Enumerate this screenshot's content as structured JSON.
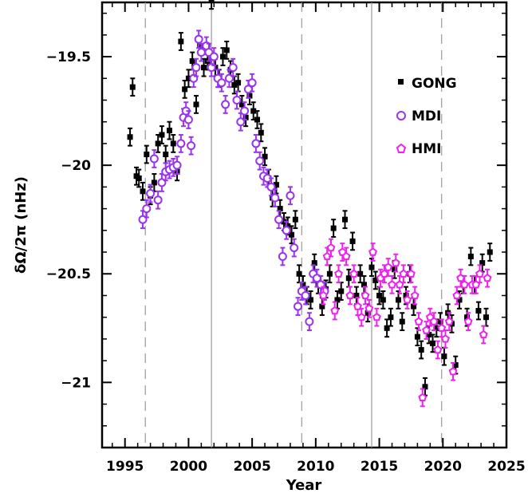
{
  "chart_data": {
    "type": "scatter",
    "xlabel": "Year",
    "ylabel": "δΩ/2π (nHz)",
    "xlim": [
      1993.2,
      2025
    ],
    "ylim": [
      -21.3,
      -19.25
    ],
    "x_ticks": [
      1995,
      2000,
      2005,
      2010,
      2015,
      2020,
      2025
    ],
    "x_tick_labels": [
      "1995",
      "2000",
      "2005",
      "2010",
      "2015",
      "2020",
      "2025"
    ],
    "y_ticks": [
      -19.5,
      -20,
      -20.5,
      -21
    ],
    "y_tick_labels": [
      "-19.5",
      "-20",
      "-20.5",
      "-21"
    ],
    "vertical_lines": [
      {
        "x": 1996.6,
        "style": "dashed"
      },
      {
        "x": 2001.8,
        "style": "solid"
      },
      {
        "x": 2008.9,
        "style": "dashed"
      },
      {
        "x": 2014.4,
        "style": "solid"
      },
      {
        "x": 2019.9,
        "style": "dashed"
      }
    ],
    "legend_position": "top-right",
    "series": [
      {
        "name": "GONG",
        "marker": "filled-square",
        "color": "#000000",
        "x": [
          1995.4,
          1995.6,
          1995.9,
          1996.1,
          1996.4,
          1996.7,
          1997.0,
          1997.3,
          1997.6,
          1997.9,
          1998.2,
          1998.5,
          1998.8,
          1999.1,
          1999.4,
          1999.7,
          2000.0,
          2000.3,
          2000.6,
          2000.9,
          2001.2,
          2001.5,
          2001.8,
          2002.1,
          2002.4,
          2002.7,
          2003.0,
          2003.3,
          2003.6,
          2003.9,
          2004.2,
          2004.5,
          2004.8,
          2005.1,
          2005.4,
          2005.7,
          2006.0,
          2006.3,
          2006.6,
          2006.9,
          2007.2,
          2007.5,
          2007.8,
          2008.1,
          2008.4,
          2008.7,
          2009.0,
          2009.3,
          2009.6,
          2009.9,
          2010.2,
          2010.5,
          2010.8,
          2011.1,
          2011.4,
          2011.7,
          2012.0,
          2012.3,
          2012.6,
          2012.9,
          2013.2,
          2013.5,
          2013.8,
          2014.1,
          2014.4,
          2014.7,
          2015.0,
          2015.3,
          2015.6,
          2015.9,
          2016.2,
          2016.5,
          2016.8,
          2017.1,
          2017.4,
          2017.7,
          2018.0,
          2018.3,
          2018.6,
          2018.9,
          2019.2,
          2019.5,
          2019.8,
          2020.1,
          2020.4,
          2020.7,
          2021.0,
          2021.3,
          2021.6,
          2021.9,
          2022.2,
          2022.5,
          2022.8,
          2023.1,
          2023.4,
          2023.7
        ],
        "y": [
          -19.87,
          -19.64,
          -20.05,
          -20.06,
          -20.12,
          -19.95,
          -20.14,
          -20.08,
          -19.9,
          -19.86,
          -19.95,
          -19.84,
          -19.9,
          -20.03,
          -19.43,
          -19.65,
          -19.6,
          -19.52,
          -19.72,
          -19.45,
          -19.55,
          -19.52,
          -19.24,
          -19.55,
          -19.6,
          -19.5,
          -19.47,
          -19.56,
          -19.63,
          -19.62,
          -19.72,
          -19.78,
          -19.68,
          -19.75,
          -19.79,
          -19.85,
          -19.96,
          -20.06,
          -20.15,
          -20.09,
          -20.2,
          -20.26,
          -20.28,
          -20.32,
          -20.25,
          -20.5,
          -20.55,
          -20.6,
          -20.62,
          -20.45,
          -20.55,
          -20.65,
          -20.57,
          -20.5,
          -20.29,
          -20.62,
          -20.58,
          -20.25,
          -20.52,
          -20.35,
          -20.6,
          -20.5,
          -20.55,
          -20.68,
          -20.47,
          -20.53,
          -20.6,
          -20.62,
          -20.75,
          -20.7,
          -20.48,
          -20.62,
          -20.72,
          -20.6,
          -20.5,
          -20.65,
          -20.79,
          -20.85,
          -21.02,
          -20.78,
          -20.82,
          -20.75,
          -20.72,
          -20.88,
          -20.68,
          -20.73,
          -20.92,
          -20.62,
          -20.55,
          -20.7,
          -20.42,
          -20.55,
          -20.67,
          -20.45,
          -20.7,
          -20.4
        ]
      },
      {
        "name": "MDI",
        "marker": "open-circle",
        "color": "#9933ee",
        "x": [
          1996.4,
          1996.7,
          1997.0,
          1997.3,
          1997.6,
          1997.9,
          1998.2,
          1998.5,
          1998.8,
          1999.1,
          1999.4,
          1999.6,
          1999.8,
          2000.0,
          2000.2,
          2000.4,
          2000.6,
          2000.8,
          2001.0,
          2001.2,
          2001.4,
          2001.6,
          2001.8,
          2002.0,
          2002.3,
          2002.6,
          2002.9,
          2003.2,
          2003.5,
          2003.8,
          2004.1,
          2004.4,
          2004.7,
          2005.0,
          2005.3,
          2005.6,
          2005.9,
          2006.2,
          2006.5,
          2006.8,
          2007.1,
          2007.4,
          2007.7,
          2008.0,
          2008.3,
          2008.6,
          2008.9,
          2009.2,
          2009.5,
          2009.8,
          2010.1,
          2010.4,
          2010.7
        ],
        "y": [
          -20.25,
          -20.2,
          -20.13,
          -19.97,
          -20.16,
          -20.08,
          -20.03,
          -20.02,
          -20.01,
          -20.0,
          -19.9,
          -19.78,
          -19.75,
          -19.79,
          -19.91,
          -19.6,
          -19.55,
          -19.42,
          -19.48,
          -19.18,
          -19.45,
          -19.48,
          -19.55,
          -19.5,
          -19.6,
          -19.62,
          -19.72,
          -19.6,
          -19.55,
          -19.7,
          -19.8,
          -19.75,
          -19.65,
          -19.62,
          -19.9,
          -19.98,
          -20.05,
          -20.06,
          -20.1,
          -20.15,
          -20.25,
          -20.42,
          -20.3,
          -20.14,
          -20.38,
          -20.65,
          -20.58,
          -20.6,
          -20.72,
          -20.5,
          -20.52,
          -20.55,
          -20.58
        ]
      },
      {
        "name": "HMI",
        "marker": "open-pentagon",
        "color": "#ee22ee",
        "x": [
          2010.6,
          2010.9,
          2011.2,
          2011.5,
          2011.8,
          2012.1,
          2012.4,
          2012.7,
          2013.0,
          2013.3,
          2013.6,
          2013.9,
          2014.2,
          2014.5,
          2014.8,
          2015.1,
          2015.4,
          2015.7,
          2016.0,
          2016.3,
          2016.6,
          2016.9,
          2017.2,
          2017.5,
          2017.8,
          2018.1,
          2018.4,
          2018.7,
          2019.0,
          2019.3,
          2019.6,
          2019.9,
          2020.2,
          2020.5,
          2020.8,
          2021.1,
          2021.4,
          2021.7,
          2022.0,
          2022.3,
          2022.6,
          2022.9,
          2023.2,
          2023.5
        ],
        "y": [
          -20.6,
          -20.42,
          -20.38,
          -20.67,
          -20.5,
          -20.4,
          -20.42,
          -20.6,
          -20.5,
          -20.65,
          -20.7,
          -20.6,
          -20.66,
          -20.4,
          -20.7,
          -20.52,
          -20.5,
          -20.47,
          -20.55,
          -20.45,
          -20.55,
          -20.5,
          -20.62,
          -20.5,
          -20.6,
          -20.72,
          -21.07,
          -20.76,
          -20.7,
          -20.72,
          -20.85,
          -20.75,
          -20.8,
          -20.72,
          -20.95,
          -20.6,
          -20.52,
          -20.55,
          -20.72,
          -20.55,
          -20.55,
          -20.5,
          -20.78,
          -20.52
        ]
      }
    ],
    "error_bar_nhz": 0.04
  }
}
